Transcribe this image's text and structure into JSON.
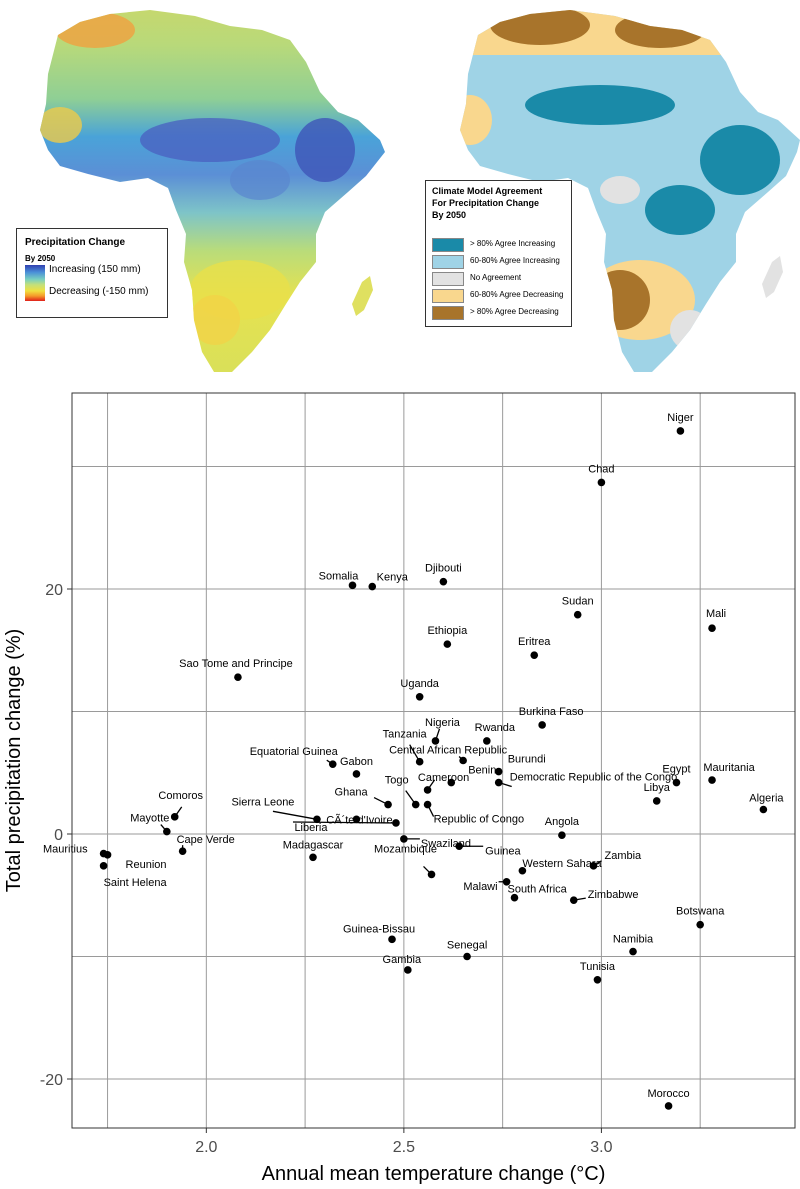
{
  "map_left": {
    "legend_title": "Precipitation Change",
    "legend_subtitle": "By 2050",
    "label_increasing": "Increasing (150 mm)",
    "label_decreasing": "Decreasing (-150 mm)"
  },
  "map_right": {
    "legend_title_lines": [
      "Climate Model Agreement",
      "For Precipitation Change",
      "By 2050"
    ],
    "categories": [
      {
        "label": "> 80% Agree Increasing",
        "color": "#1a8aa8"
      },
      {
        "label": "60-80% Agree Increasing",
        "color": "#9fd3e6"
      },
      {
        "label": "No Agreement",
        "color": "#e2e2e2"
      },
      {
        "label": "60-80% Agree Decreasing",
        "color": "#f9d78e"
      },
      {
        "label": "> 80% Agree Decreasing",
        "color": "#a8742b"
      }
    ]
  },
  "chart_data": {
    "type": "scatter",
    "xlabel": "Annual mean temperature change (°C)",
    "ylabel": "Total precipitation change (%)",
    "xlim": [
      1.66,
      3.49
    ],
    "ylim": [
      -24,
      36
    ],
    "xticks": [
      2.0,
      2.5,
      3.0
    ],
    "xtick_labels": [
      "2.0",
      "2.5",
      "3.0"
    ],
    "yticks": [
      -20,
      0,
      20
    ],
    "ytick_labels": [
      "-20",
      "0",
      "20"
    ],
    "grid": true,
    "points": [
      {
        "name": "Niger",
        "x": 3.2,
        "y": 32.9
      },
      {
        "name": "Chad",
        "x": 3.0,
        "y": 28.7
      },
      {
        "name": "Somalia",
        "x": 2.37,
        "y": 20.3
      },
      {
        "name": "Kenya",
        "x": 2.42,
        "y": 20.2
      },
      {
        "name": "Djibouti",
        "x": 2.6,
        "y": 20.6
      },
      {
        "name": "Sudan",
        "x": 2.94,
        "y": 17.9
      },
      {
        "name": "Mali",
        "x": 3.28,
        "y": 16.8
      },
      {
        "name": "Ethiopia",
        "x": 2.61,
        "y": 15.5
      },
      {
        "name": "Eritrea",
        "x": 2.83,
        "y": 14.6
      },
      {
        "name": "Sao Tome and Principe",
        "x": 2.08,
        "y": 12.8
      },
      {
        "name": "Uganda",
        "x": 2.54,
        "y": 11.2
      },
      {
        "name": "Burkina Faso",
        "x": 2.85,
        "y": 8.9
      },
      {
        "name": "Nigeria",
        "x": 2.58,
        "y": 7.6
      },
      {
        "name": "Rwanda",
        "x": 2.71,
        "y": 7.6
      },
      {
        "name": "Tanzania",
        "x": 2.54,
        "y": 5.9
      },
      {
        "name": "Equatorial Guinea",
        "x": 2.32,
        "y": 5.7
      },
      {
        "name": "Central African Republic",
        "x": 2.65,
        "y": 6.0
      },
      {
        "name": "Gabon",
        "x": 2.38,
        "y": 4.9
      },
      {
        "name": "Cameroon",
        "x": 2.56,
        "y": 3.6
      },
      {
        "name": "Benin",
        "x": 2.62,
        "y": 4.2
      },
      {
        "name": "Burundi",
        "x": 2.74,
        "y": 5.1
      },
      {
        "name": "Democratic Republic of the Congo",
        "x": 2.74,
        "y": 4.2
      },
      {
        "name": "Egypt",
        "x": 3.19,
        "y": 4.2
      },
      {
        "name": "Mauritania",
        "x": 3.28,
        "y": 4.4
      },
      {
        "name": "Libya",
        "x": 3.14,
        "y": 2.7
      },
      {
        "name": "Algeria",
        "x": 3.41,
        "y": 2.0
      },
      {
        "name": "Ghana",
        "x": 2.46,
        "y": 2.4
      },
      {
        "name": "Togo",
        "x": 2.53,
        "y": 2.4
      },
      {
        "name": "Republic of Congo",
        "x": 2.56,
        "y": 2.4
      },
      {
        "name": "Sierra Leone",
        "x": 2.28,
        "y": 1.2
      },
      {
        "name": "CÃ´te d'Ivoire",
        "x": 2.38,
        "y": 1.2
      },
      {
        "name": "Liberia",
        "x": 2.48,
        "y": 0.9
      },
      {
        "name": "Comoros",
        "x": 1.92,
        "y": 1.4
      },
      {
        "name": "Mayotte",
        "x": 1.9,
        "y": 0.2
      },
      {
        "name": "Angola",
        "x": 2.9,
        "y": -0.1
      },
      {
        "name": "Swaziland",
        "x": 2.5,
        "y": -0.4
      },
      {
        "name": "Guinea",
        "x": 2.64,
        "y": -1.0
      },
      {
        "name": "Mauritius",
        "x": 1.74,
        "y": -1.6
      },
      {
        "name": "Reunion",
        "x": 1.75,
        "y": -1.7
      },
      {
        "name": "Saint Helena",
        "x": 1.74,
        "y": -2.6
      },
      {
        "name": "Cape Verde",
        "x": 1.94,
        "y": -1.4
      },
      {
        "name": "Madagascar",
        "x": 2.27,
        "y": -1.9
      },
      {
        "name": "Mozambique",
        "x": 2.57,
        "y": -3.3
      },
      {
        "name": "Western Sahara",
        "x": 2.8,
        "y": -3.0
      },
      {
        "name": "Zambia",
        "x": 2.98,
        "y": -2.6
      },
      {
        "name": "Malawi",
        "x": 2.76,
        "y": -3.9
      },
      {
        "name": "South Africa",
        "x": 2.78,
        "y": -5.2
      },
      {
        "name": "Zimbabwe",
        "x": 2.93,
        "y": -5.4
      },
      {
        "name": "Botswana",
        "x": 3.25,
        "y": -7.4
      },
      {
        "name": "Guinea-Bissau",
        "x": 2.47,
        "y": -8.6
      },
      {
        "name": "Senegal",
        "x": 2.66,
        "y": -10.0
      },
      {
        "name": "Gambia",
        "x": 2.51,
        "y": -11.1
      },
      {
        "name": "Namibia",
        "x": 3.08,
        "y": -9.6
      },
      {
        "name": "Tunisia",
        "x": 2.99,
        "y": -11.9
      },
      {
        "name": "Morocco",
        "x": 3.17,
        "y": -22.2
      }
    ]
  }
}
